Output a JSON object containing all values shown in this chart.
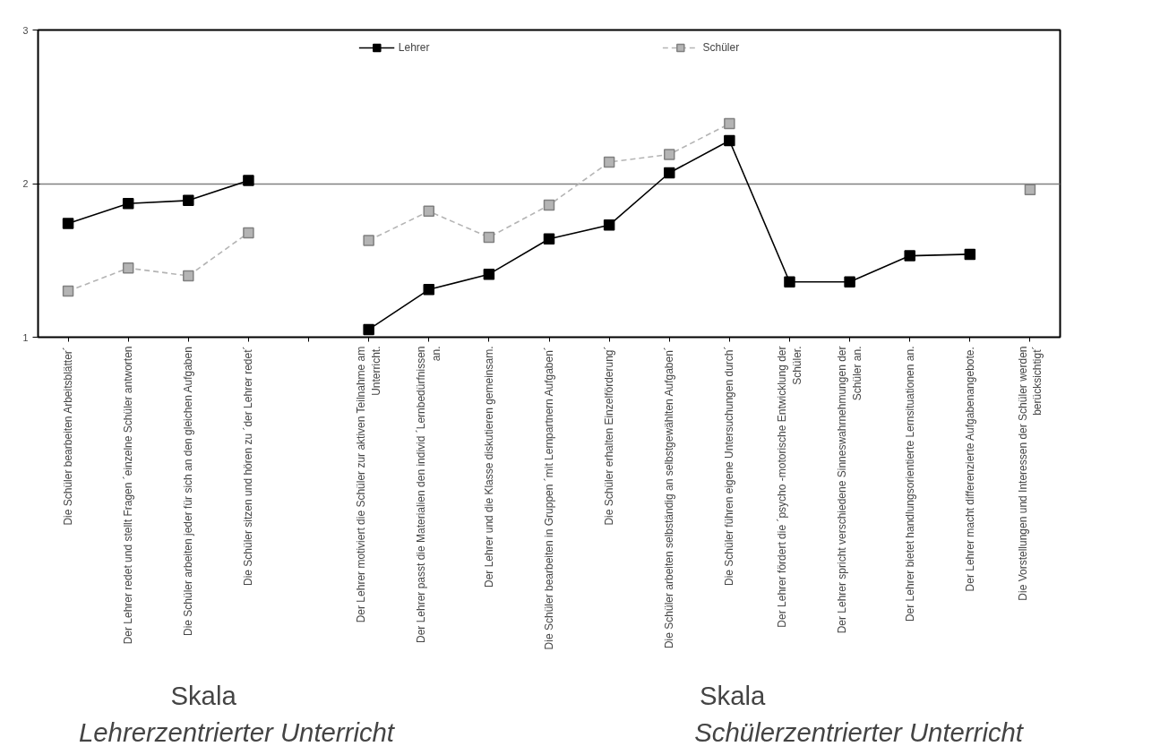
{
  "chart_data": {
    "type": "line",
    "categories": [
      "Die Schüler bearbeiten Arbeitsblätter´",
      "Der Lehrer redet und stellt Fragen ´einzelne Schüler antworten",
      "Die Schüler arbeiten jeder für sich an den gleichen Aufgaben",
      "Die Schüler sitzen und hören zu ´der Lehrer redet´",
      null,
      "Der Lehrer motiviert die Schüler zur aktiven Teilnahme am\nUnterricht.",
      "Der Lehrer passt die Materialien den individ ´Lernbedürfnissen\nan.",
      "Der Lehrer und die Klasse diskutieren gemeinsam.",
      "Die Schüler bearbeiten in Gruppen ´mit Lernpartnern Aufgaben´",
      "Die Schüler erhalten Einzelförderung´",
      "Die Schüler arbeiten selbständig an selbstgewählten Aufgaben´",
      "Die Schüler führen eigene Untersuchungen durch´",
      "Der Lehrer fördert die ´psycho -motorische Entwicklung der\nSchüler.",
      "Der Lehrer spricht verschiedene Sinneswahrnehmungen der\nSchüler an.",
      "Der Lehrer bietet handlungsorientierte Lernsituationen an.",
      "Der Lehrer macht differenzierte Aufgabenangebote.",
      "Die Vorstellungen und Interessen der Schüler werden\nberücksichtigt´"
    ],
    "series": [
      {
        "name": "Lehrer",
        "color": "#000000",
        "line_style": "solid",
        "values": [
          1.74,
          1.87,
          1.89,
          2.02,
          null,
          1.05,
          1.31,
          1.41,
          1.64,
          1.73,
          2.07,
          2.28,
          1.36,
          1.36,
          1.53,
          1.54,
          null
        ]
      },
      {
        "name": "Schüler",
        "color": "#b4b4b4",
        "line_style": "dashed",
        "values": [
          1.3,
          1.45,
          1.4,
          1.68,
          null,
          1.63,
          1.82,
          1.65,
          1.86,
          2.14,
          2.19,
          2.39,
          null,
          null,
          null,
          null,
          1.96
        ]
      }
    ],
    "ylim": [
      1,
      3
    ],
    "yticks": [
      1,
      2,
      3
    ],
    "grid": "y",
    "legend": "top",
    "marker": "square",
    "annotations": [
      "Skala",
      "Lehrerzentrierter Unterricht",
      "Skala",
      "Schülerzentrierter Unterricht"
    ]
  }
}
